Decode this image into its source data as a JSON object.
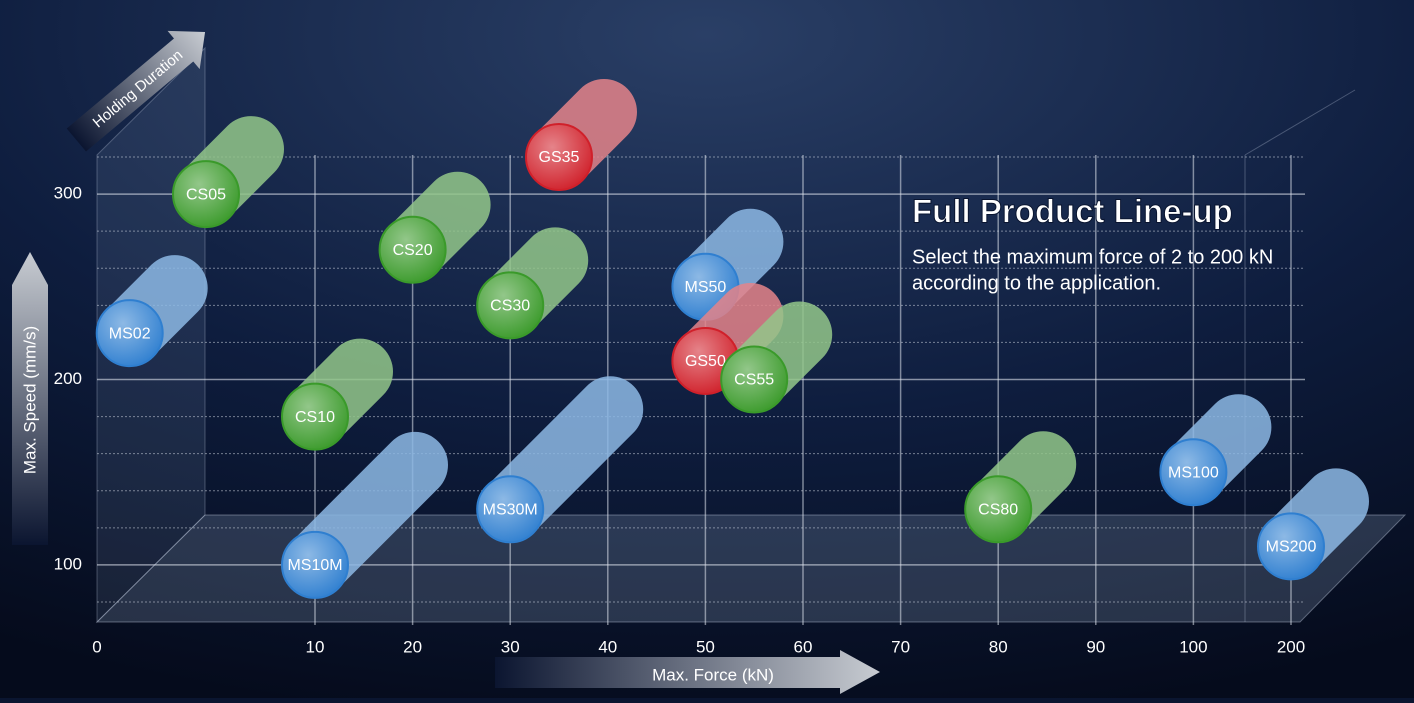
{
  "chart_data": {
    "type": "scatter",
    "title": "Full Product Line-up",
    "subtitle": [
      "Select the maximum force of 2 to 200 kN",
      "according to the application."
    ],
    "x_label": "Max. Force (kN)",
    "y_label": "Max. Speed (mm/s)",
    "z_label": "Holding Duration",
    "xlim": [
      0,
      200
    ],
    "xticks": [
      0,
      10,
      20,
      30,
      40,
      50,
      60,
      70,
      80,
      90,
      100,
      200
    ],
    "ylim": [
      80,
      320
    ],
    "yticks": [
      100,
      200,
      300
    ],
    "yminorticks": [
      80,
      120,
      140,
      160,
      180,
      220,
      240,
      260,
      280,
      320
    ],
    "labels": [
      "MS02",
      "CS05",
      "CS10",
      "CS20",
      "CS30",
      "GS35",
      "MS50",
      "GS50",
      "CS55",
      "MS10M",
      "MS30M",
      "CS80",
      "MS100",
      "MS200"
    ],
    "x": [
      1.5,
      5,
      10,
      20,
      30,
      35,
      50,
      50,
      55,
      10,
      30,
      80,
      100,
      200
    ],
    "values": [
      225,
      300,
      180,
      270,
      240,
      320,
      250,
      210,
      200,
      100,
      130,
      130,
      150,
      110
    ],
    "colors": [
      "#2f7fd0",
      "#3a9a2a",
      "#3a9a2a",
      "#3a9a2a",
      "#3a9a2a",
      "#d0202a",
      "#2f7fd0",
      "#d0202a",
      "#3a9a2a",
      "#2f7fd0",
      "#2f7fd0",
      "#3a9a2a",
      "#2f7fd0",
      "#2f7fd0"
    ],
    "long": [
      false,
      false,
      false,
      false,
      false,
      false,
      false,
      false,
      false,
      true,
      true,
      false,
      false,
      false
    ]
  }
}
